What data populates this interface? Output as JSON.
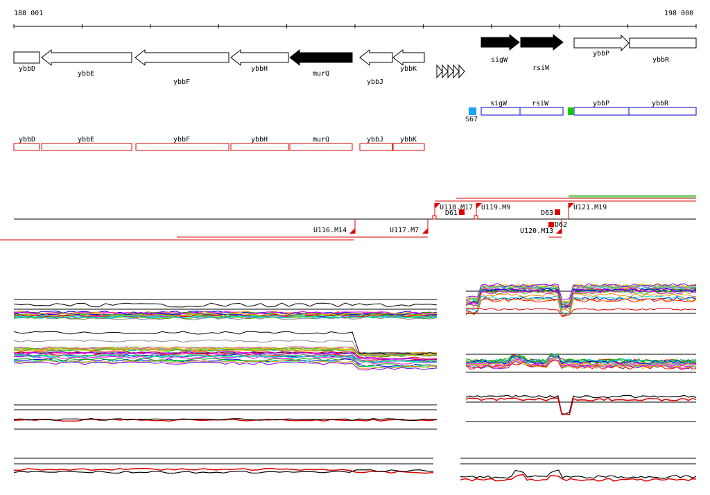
{
  "axis": {
    "start_label": "188 001",
    "end_label": "198 000"
  },
  "genes_top": [
    {
      "name": "ybbD",
      "fill": "#ffffff"
    },
    {
      "name": "ybbE",
      "fill": "#ffffff"
    },
    {
      "name": "ybbF",
      "fill": "#ffffff"
    },
    {
      "name": "ybbH",
      "fill": "#ffffff"
    },
    {
      "name": "murQ",
      "fill": "#000000"
    },
    {
      "name": "ybbJ",
      "fill": "#ffffff"
    },
    {
      "name": "ybbK",
      "fill": "#ffffff"
    },
    {
      "name": "sigW",
      "fill": "#000000"
    },
    {
      "name": "rsiW",
      "fill": "#000000"
    },
    {
      "name": "ybbP",
      "fill": "#ffffff"
    },
    {
      "name": "ybbR",
      "fill": "#ffffff"
    }
  ],
  "blue_track": {
    "marker_label": "S67",
    "boxes": [
      "sigW",
      "rsiW",
      "ybbP",
      "ybbR"
    ],
    "color": "#0000cc",
    "marker_color": "#1ea0ff",
    "green_color": "#00cc00"
  },
  "red_track": {
    "boxes": [
      "ybbD",
      "ybbE",
      "ybbF",
      "ybbH",
      "murQ",
      "ybbJ",
      "ybbK"
    ],
    "color": "#dd0000"
  },
  "segments": {
    "up_labels": [
      "U118.M17",
      "U119.M9",
      "U121.M19"
    ],
    "down_labels": [
      "U116.M14",
      "U117.M7",
      "U120.M13"
    ],
    "d_labels": [
      "D61",
      "D63",
      "D62"
    ],
    "color": "#dd0000"
  }
}
